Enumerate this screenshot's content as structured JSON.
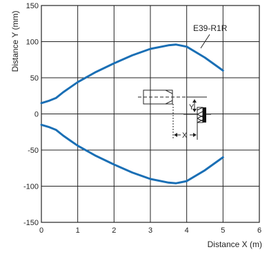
{
  "chart_data": {
    "type": "line",
    "title": "",
    "xlabel": "Distance X (m)",
    "ylabel": "Distance Y (mm)",
    "xlim": [
      0,
      6
    ],
    "ylim": [
      -150,
      150
    ],
    "xticks": [
      0,
      1,
      2,
      3,
      4,
      5,
      6
    ],
    "yticks": [
      150,
      100,
      50,
      0,
      -50,
      -100,
      -150
    ],
    "grid": true,
    "legend": "none",
    "series": [
      {
        "name": "E39-R1R",
        "color": "#1a6fb5",
        "x": [
          0,
          0.2,
          0.4,
          0.6,
          0.8,
          1.0,
          1.5,
          2.0,
          2.5,
          3.0,
          3.5,
          3.7,
          4.0,
          4.5,
          5.0
        ],
        "y_upper": [
          15,
          18,
          22,
          30,
          37,
          44,
          58,
          70,
          81,
          90,
          95,
          96,
          93,
          78,
          60
        ],
        "y_lower": [
          -15,
          -18,
          -22,
          -30,
          -37,
          -44,
          -58,
          -70,
          -81,
          -90,
          -95,
          -96,
          -93,
          -78,
          -60
        ]
      }
    ],
    "annotations": {
      "series_label": "E39-R1R",
      "diagram_y": "Y",
      "diagram_x": "X"
    }
  }
}
